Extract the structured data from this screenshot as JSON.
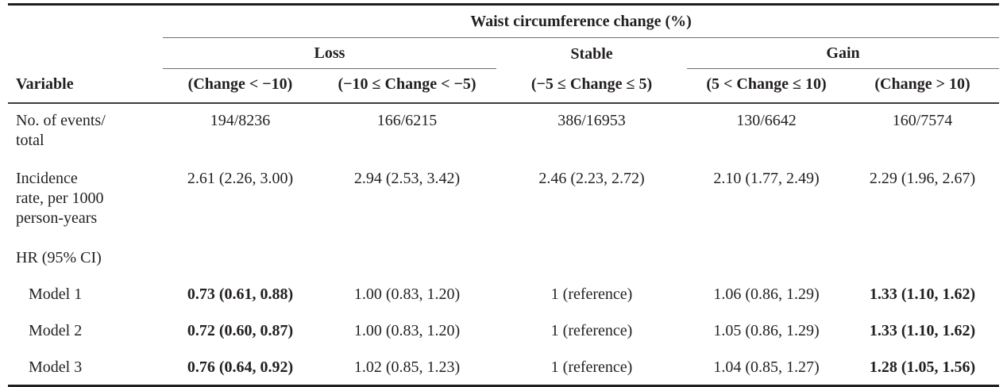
{
  "table": {
    "spanner_title": "Waist circumference change (%)",
    "group_headers": [
      {
        "label": "Loss"
      },
      {
        "label": "Stable"
      },
      {
        "label": "Gain"
      }
    ],
    "variable_header": "Variable",
    "column_headers": [
      "(Change < −10)",
      "(−10 ≤ Change < −5)",
      "(−5 ≤ Change ≤ 5)",
      "(5 < Change ≤ 10)",
      "(Change > 10)"
    ],
    "rows": [
      {
        "label": "No. of events/\ntotal",
        "cells": [
          "194/8236",
          "166/6215",
          "386/16953",
          "130/6642",
          "160/7574"
        ]
      },
      {
        "label": "Incidence\nrate, per 1000\nperson-years",
        "cells": [
          "2.61 (2.26, 3.00)",
          "2.94 (2.53, 3.42)",
          "2.46 (2.23, 2.72)",
          "2.10 (1.77, 2.49)",
          "2.29 (1.96, 2.67)"
        ]
      },
      {
        "label": "HR (95% CI)",
        "cells": [
          "",
          "",
          "",
          "",
          ""
        ]
      },
      {
        "label": "Model 1",
        "cells": [
          "0.73 (0.61, 0.88)",
          "1.00 (0.83, 1.20)",
          "1 (reference)",
          "1.06 (0.86, 1.29)",
          "1.33 (1.10, 1.62)"
        ]
      },
      {
        "label": "Model 2",
        "cells": [
          "0.72 (0.60, 0.87)",
          "1.00 (0.83, 1.20)",
          "1 (reference)",
          "1.05 (0.86, 1.29)",
          "1.33 (1.10, 1.62)"
        ]
      },
      {
        "label": "Model 3",
        "cells": [
          "0.76 (0.64, 0.92)",
          "1.02 (0.85, 1.23)",
          "1 (reference)",
          "1.04 (0.85, 1.27)",
          "1.28 (1.05, 1.56)"
        ]
      }
    ],
    "colors": {
      "text": "#231f20",
      "rule_heavy": "#1f1f1f",
      "rule_medium": "#3c3c3c",
      "rule_light": "#6f6f6f",
      "background": "#ffffff"
    }
  }
}
